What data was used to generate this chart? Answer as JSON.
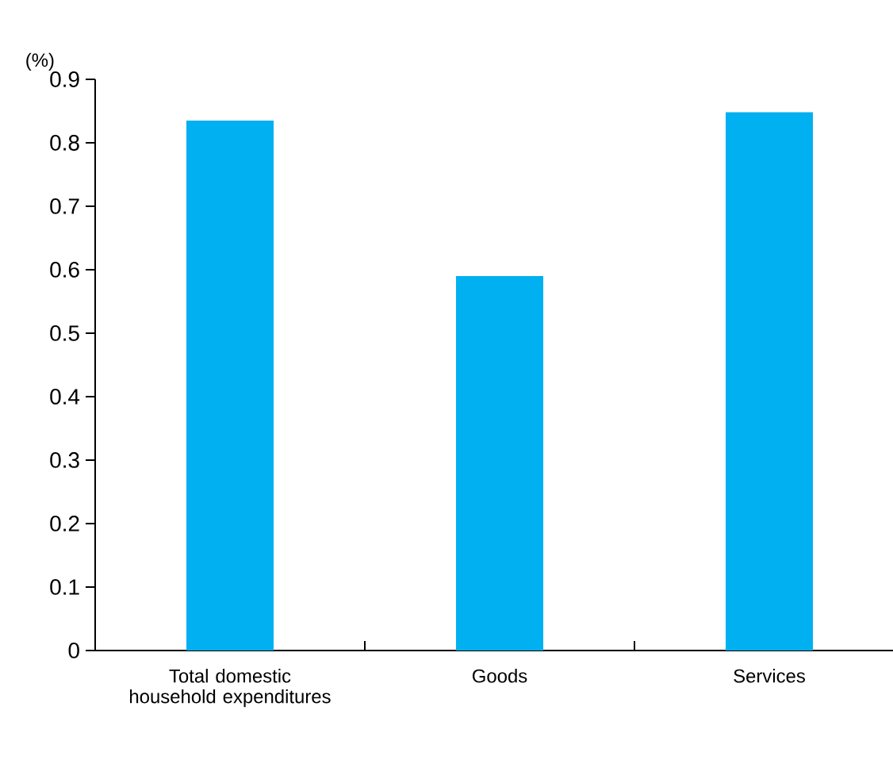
{
  "chart_data": {
    "type": "bar",
    "ylabel": "(%)",
    "categories": [
      "Total domestic household expenditures",
      "Goods",
      "Services"
    ],
    "values": [
      0.835,
      0.59,
      0.848
    ],
    "color": "#00b0f0",
    "ylim": [
      0,
      0.9
    ],
    "yticks": [
      0,
      0.1,
      0.2,
      0.3,
      0.4,
      0.5,
      0.6,
      0.7,
      0.8,
      0.9
    ],
    "grid": false
  }
}
